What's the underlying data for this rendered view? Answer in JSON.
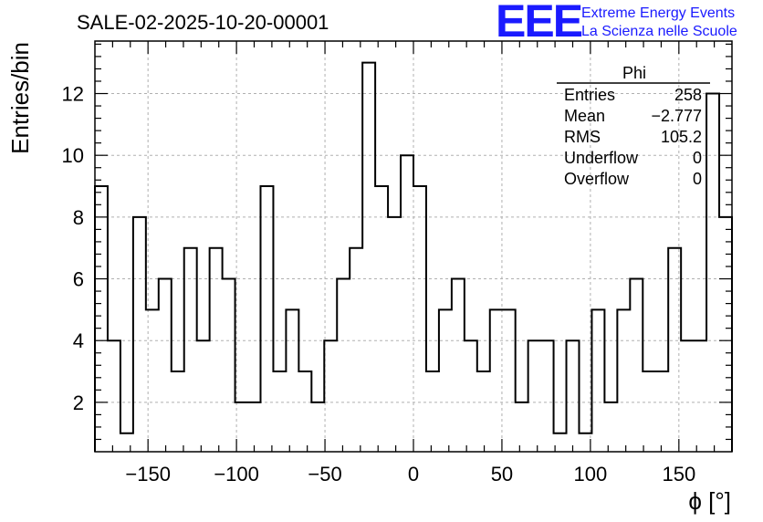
{
  "chart_data": {
    "type": "histogram",
    "title": "SALE-02-2025-10-20-00001",
    "xlabel": "ϕ [°]",
    "ylabel": "Entries/bin",
    "xlim": [
      -180,
      180
    ],
    "ylim": [
      0.4,
      13.7
    ],
    "xticks": [
      -150,
      -100,
      -50,
      0,
      50,
      100,
      150
    ],
    "xtick_labels": [
      "−150",
      "−100",
      "−50",
      "0",
      "50",
      "100",
      "150"
    ],
    "yticks": [
      2,
      4,
      6,
      8,
      10,
      12
    ],
    "ytick_labels": [
      "2",
      "4",
      "6",
      "8",
      "10",
      "12"
    ],
    "grid": true,
    "bin_width": 7.2,
    "bin_edges_start": -180,
    "values": [
      9,
      4,
      1,
      8,
      5,
      6,
      3,
      7,
      4,
      7,
      6,
      2,
      2,
      9,
      3,
      5,
      3,
      2,
      4,
      6,
      7,
      13,
      9,
      8,
      10,
      9,
      3,
      5,
      6,
      4,
      3,
      5,
      5,
      2,
      4,
      4,
      1,
      4,
      1,
      5,
      2,
      5,
      6,
      3,
      3,
      7,
      4,
      4,
      12,
      8
    ]
  },
  "stats": {
    "name": "Phi",
    "rows": [
      {
        "label": "Entries",
        "value": "258"
      },
      {
        "label": "Mean",
        "value": "−2.777"
      },
      {
        "label": "RMS",
        "value": "105.2"
      },
      {
        "label": "Underflow",
        "value": "0"
      },
      {
        "label": "Overflow",
        "value": "0"
      }
    ]
  },
  "logo": {
    "text": "EEE",
    "line1": "Extreme Energy Events",
    "line2": "La Scienza nelle Scuole",
    "color": "#1a1aff"
  }
}
